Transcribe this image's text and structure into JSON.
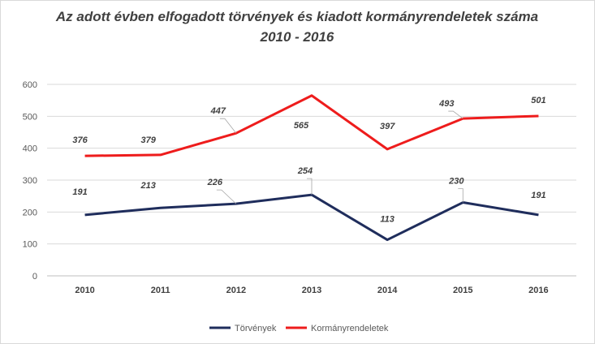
{
  "chart_data": {
    "type": "line",
    "title": "Az adott évben elfogadott törvények és kiadott kormányrendeletek száma",
    "subtitle": "2010 - 2016",
    "categories": [
      "2010",
      "2011",
      "2012",
      "2013",
      "2014",
      "2015",
      "2016"
    ],
    "ylim": [
      0,
      600
    ],
    "yticks": [
      0,
      100,
      200,
      300,
      400,
      500,
      600
    ],
    "grid": true,
    "legend": "bottom",
    "series": [
      {
        "name": "Törvények",
        "color": "#1f2d5c",
        "values": [
          191,
          213,
          226,
          254,
          113,
          230,
          191
        ]
      },
      {
        "name": "Kormányrendeletek",
        "color": "#ee1c1c",
        "values": [
          376,
          379,
          447,
          565,
          397,
          493,
          501
        ]
      }
    ]
  }
}
